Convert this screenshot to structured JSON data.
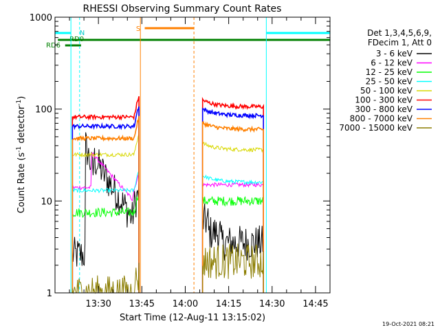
{
  "chart_data": {
    "type": "line",
    "title": "RHESSI Observing Summary Count Rates",
    "xlabel": "Start Time (12-Aug-11 13:15:02)",
    "ylabel_main": "Count Rate (s",
    "ylabel_sup1": "-1",
    "ylabel_mid": " detector",
    "ylabel_sup2": "-1",
    "ylabel_end": ")",
    "y_scale": "log",
    "ylim": [
      1,
      1000
    ],
    "xlim_minutes_from_start": [
      0,
      95
    ],
    "x_ticks": [
      {
        "label": "13:30",
        "minute": 15
      },
      {
        "label": "13:45",
        "minute": 30
      },
      {
        "label": "14:00",
        "minute": 45
      },
      {
        "label": "14:15",
        "minute": 60
      },
      {
        "label": "14:30",
        "minute": 75
      },
      {
        "label": "14:45",
        "minute": 90
      }
    ],
    "y_ticks": [
      {
        "label": "1",
        "value": 1
      },
      {
        "label": "10",
        "value": 10
      },
      {
        "label": "100",
        "value": 100
      },
      {
        "label": "1000",
        "value": 1000
      }
    ],
    "legend_header": [
      "Det 1,3,4,5,6,9,",
      "FDecim 1, Att 0"
    ],
    "legend_placement": "right",
    "timestamp": "19-Oct-2021 08:21",
    "series": [
      {
        "name": "3 - 6 keV",
        "color": "#000000"
      },
      {
        "name": "6 - 12 keV",
        "color": "#ff00ff"
      },
      {
        "name": "12 - 25 keV",
        "color": "#00ff00"
      },
      {
        "name": "25 - 50 keV",
        "color": "#00ffff"
      },
      {
        "name": "50 - 100 keV",
        "color": "#d8d800"
      },
      {
        "name": "100 - 300 keV",
        "color": "#ff0000"
      },
      {
        "name": "300 - 800 keV",
        "color": "#0000ff"
      },
      {
        "name": "800 - 7000 keV",
        "color": "#ff8000"
      },
      {
        "name": "7000 - 15000 keV",
        "color": "#8b7d00"
      }
    ],
    "intervals": [
      {
        "start": 6,
        "end": 29,
        "levels": [
          2.5,
          15,
          7.5,
          13,
          32,
          82,
          65,
          48,
          1
        ]
      },
      {
        "start": 51,
        "end": 72,
        "levels": [
          3.5,
          15,
          10,
          16,
          36,
          106,
          85,
          60,
          2
        ]
      }
    ],
    "flags": {
      "saa_label": "S",
      "night_label": "N",
      "rd0_label": "RD0",
      "rd6_label": "RD6"
    }
  }
}
